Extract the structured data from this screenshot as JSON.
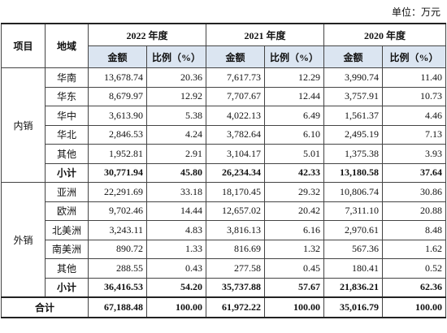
{
  "unit": "单位：万元",
  "header": {
    "item": "项目",
    "region": "地域",
    "years": [
      "2022 年度",
      "2021 年度",
      "2020 年度"
    ],
    "amount": "金额",
    "ratio": "比例（%）"
  },
  "groups": [
    {
      "label": "内销",
      "rows": [
        [
          "华南",
          "13,678.74",
          "20.36",
          "7,617.73",
          "12.29",
          "3,990.74",
          "11.40"
        ],
        [
          "华东",
          "8,679.97",
          "12.92",
          "7,707.67",
          "12.44",
          "3,757.91",
          "10.73"
        ],
        [
          "华中",
          "3,613.90",
          "5.38",
          "4,022.13",
          "6.49",
          "1,561.37",
          "4.46"
        ],
        [
          "华北",
          "2,846.53",
          "4.24",
          "3,782.64",
          "6.10",
          "2,495.19",
          "7.13"
        ],
        [
          "其他",
          "1,952.81",
          "2.91",
          "3,104.17",
          "5.01",
          "1,375.38",
          "3.93"
        ]
      ],
      "subtotal": [
        "小计",
        "30,771.94",
        "45.80",
        "26,234.34",
        "42.33",
        "13,180.58",
        "37.64"
      ]
    },
    {
      "label": "外销",
      "rows": [
        [
          "亚洲",
          "22,291.69",
          "33.18",
          "18,170.45",
          "29.32",
          "10,806.74",
          "30.86"
        ],
        [
          "欧洲",
          "9,702.46",
          "14.44",
          "12,657.02",
          "20.42",
          "7,311.10",
          "20.88"
        ],
        [
          "北美洲",
          "3,243.11",
          "4.83",
          "3,816.13",
          "6.16",
          "2,970.61",
          "8.48"
        ],
        [
          "南美洲",
          "890.72",
          "1.33",
          "816.69",
          "1.32",
          "567.36",
          "1.62"
        ],
        [
          "其他",
          "288.55",
          "0.43",
          "277.58",
          "0.45",
          "180.41",
          "0.52"
        ]
      ],
      "subtotal": [
        "小计",
        "36,416.53",
        "54.20",
        "35,737.88",
        "57.67",
        "21,836.21",
        "62.36"
      ]
    }
  ],
  "total": [
    "合计",
    "67,188.48",
    "100.00",
    "61,972.22",
    "100.00",
    "35,016.79",
    "100.00"
  ]
}
